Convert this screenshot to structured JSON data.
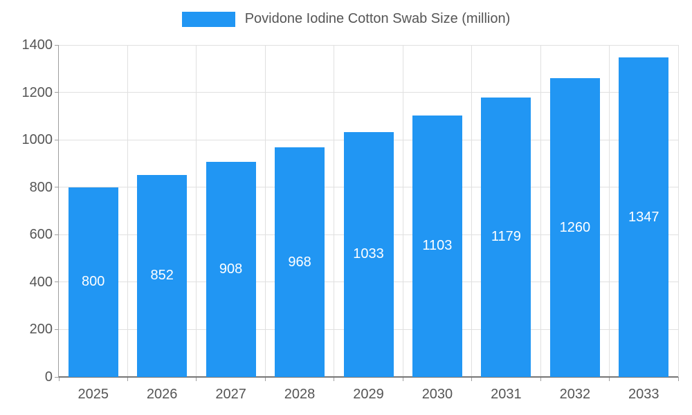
{
  "legend": {
    "label": "Povidone Iodine Cotton Swab Size (million)"
  },
  "chart_data": {
    "type": "bar",
    "title": "Povidone Iodine Cotton Swab Size (million)",
    "categories": [
      "2025",
      "2026",
      "2027",
      "2028",
      "2029",
      "2030",
      "2031",
      "2032",
      "2033"
    ],
    "values": [
      800,
      852,
      908,
      968,
      1033,
      1103,
      1179,
      1260,
      1347
    ],
    "xlabel": "",
    "ylabel": "",
    "ylim": [
      0,
      1400
    ],
    "yticks": [
      0,
      200,
      400,
      600,
      800,
      1000,
      1200,
      1400
    ],
    "grid": true,
    "legend_position": "top",
    "bar_color": "#2196F3",
    "value_label_color": "#ffffff",
    "axis_label_color": "#555555"
  }
}
